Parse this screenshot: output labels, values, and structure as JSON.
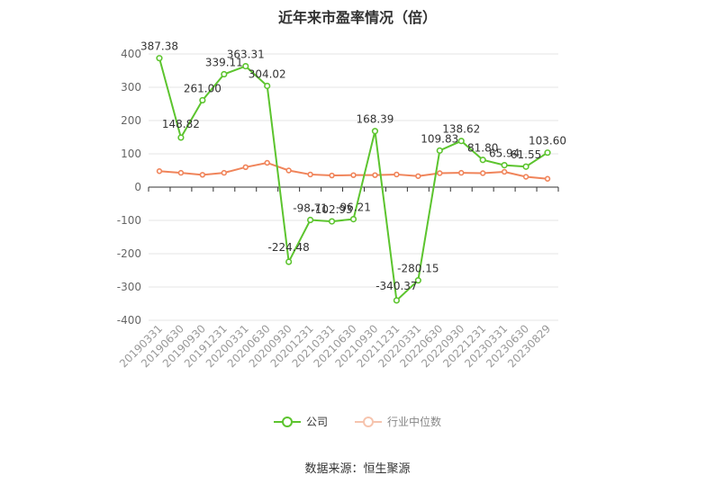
{
  "chart_data": {
    "type": "line",
    "title": "近年来市盈率情况（倍）",
    "categories": [
      "20190331",
      "20190630",
      "20190930",
      "20191231",
      "20200331",
      "20200630",
      "20200930",
      "20201231",
      "20210331",
      "20210630",
      "20210930",
      "20211231",
      "20220331",
      "20220630",
      "20220930",
      "20221231",
      "20230331",
      "20230630",
      "20230829"
    ],
    "ylim": [
      -400,
      400
    ],
    "yticks": [
      -400,
      -300,
      -200,
      -100,
      0,
      100,
      200,
      300,
      400
    ],
    "grid": true,
    "legend_position": "bottom",
    "series": [
      {
        "name": "公司",
        "color": "#5cc42e",
        "values": [
          387.38,
          148.82,
          261.0,
          339.11,
          363.31,
          304.02,
          -224.48,
          -98.71,
          -102.93,
          -96.21,
          168.39,
          -340.37,
          -280.15,
          109.83,
          138.62,
          81.8,
          65.94,
          61.55,
          103.6
        ],
        "labels": [
          "387.38",
          "148.82",
          "261.00",
          "339.11",
          "363.31",
          "304.02",
          "-224.48",
          "-98.71",
          "-102.93",
          "-96.21",
          "168.39",
          "-340.37",
          "-280.15",
          "109.83",
          "138.62",
          "81.80",
          "65.94",
          "61.55",
          "103.60"
        ]
      },
      {
        "name": "行业中位数",
        "color": "#f0845a",
        "values": [
          48,
          43,
          37,
          43,
          60,
          73,
          50,
          38,
          35,
          36,
          36,
          38,
          33,
          42,
          43,
          42,
          46,
          31,
          25
        ]
      }
    ]
  },
  "source_text": "数据来源：恒生聚源"
}
